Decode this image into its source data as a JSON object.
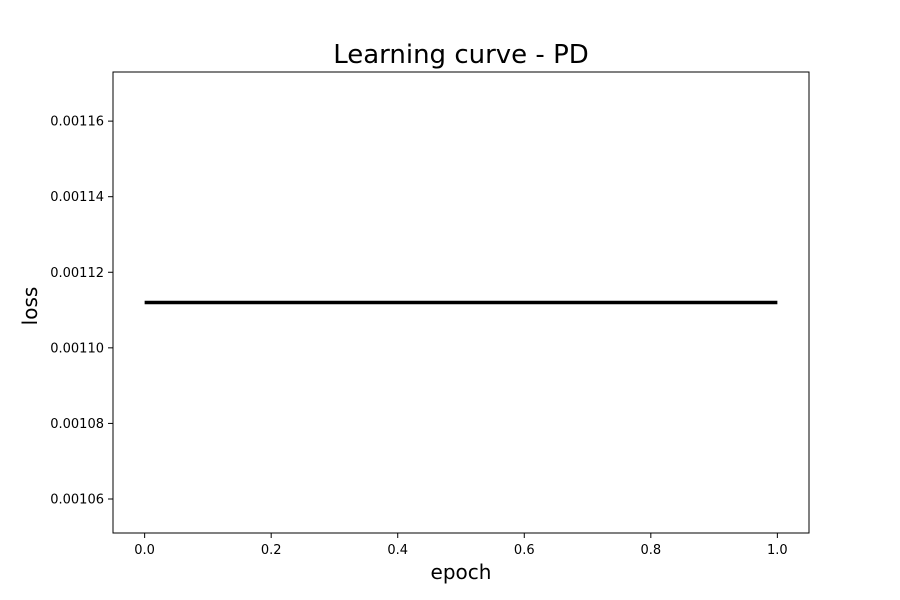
{
  "chart_data": {
    "type": "line",
    "title": "Learning curve - PD",
    "xlabel": "epoch",
    "ylabel": "loss",
    "xlim": [
      -0.05,
      1.05
    ],
    "ylim": [
      0.001051,
      0.001173
    ],
    "x_ticks": [
      0.0,
      0.2,
      0.4,
      0.6,
      0.8,
      1.0
    ],
    "x_tick_labels": [
      "0.0",
      "0.2",
      "0.4",
      "0.6",
      "0.8",
      "1.0"
    ],
    "y_ticks": [
      0.00106,
      0.00108,
      0.0011,
      0.00112,
      0.00114,
      0.00116
    ],
    "y_tick_labels": [
      "0.00106",
      "0.00108",
      "0.00110",
      "0.00112",
      "0.00114",
      "0.00116"
    ],
    "grid": false,
    "legend": "none",
    "series": [
      {
        "x": [
          0.0,
          1.0
        ],
        "y": [
          0.001112,
          0.001112
        ],
        "color": "#000000"
      }
    ]
  }
}
